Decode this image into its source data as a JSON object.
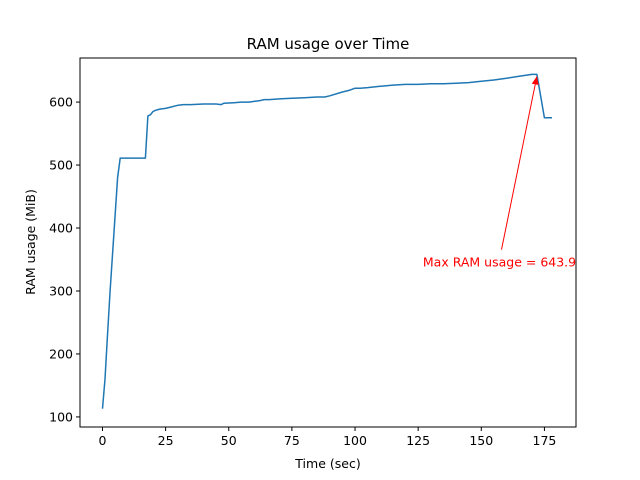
{
  "chart_data": {
    "type": "line",
    "title": "RAM usage over Time",
    "xlabel": "Time (sec)",
    "ylabel": "RAM usage (MiB)",
    "xlim": [
      -8.9,
      187.5
    ],
    "ylim": [
      84,
      670
    ],
    "xticks": [
      0,
      25,
      50,
      75,
      100,
      125,
      150,
      175
    ],
    "yticks": [
      100,
      200,
      300,
      400,
      500,
      600
    ],
    "grid": false,
    "series": [
      {
        "color": "#1f77b4",
        "x": [
          0,
          1,
          2,
          3,
          4,
          5,
          6,
          7,
          8,
          9,
          10,
          11,
          12,
          13,
          14,
          15,
          16,
          17,
          18,
          19,
          20,
          21,
          22,
          23,
          25,
          27,
          30,
          32,
          35,
          40,
          45,
          47,
          48,
          52,
          55,
          58,
          60,
          62,
          64,
          66,
          70,
          75,
          80,
          85,
          88,
          90,
          95,
          98,
          100,
          102,
          105,
          110,
          115,
          120,
          125,
          130,
          135,
          140,
          145,
          150,
          155,
          160,
          165,
          170,
          172,
          175,
          178
        ],
        "y": [
          113,
          160,
          230,
          300,
          360,
          420,
          480,
          511,
          511,
          511,
          511,
          511,
          511,
          511,
          511,
          511,
          511,
          511,
          578,
          580,
          585,
          587,
          588,
          589,
          590,
          592,
          595,
          596,
          596,
          597,
          597,
          596,
          598,
          599,
          600,
          600,
          601,
          602,
          604,
          604,
          605,
          606,
          607,
          608,
          608,
          610,
          616,
          619,
          622,
          622,
          623,
          625,
          627,
          628,
          628,
          629,
          629,
          630,
          631,
          633,
          635,
          638,
          641,
          643.9,
          643.9,
          575,
          575
        ]
      }
    ],
    "annotation": {
      "text": "Max RAM usage = 643.9",
      "color": "#ff0000",
      "xy": [
        172,
        643.9
      ],
      "xytext": [
        158,
        345
      ]
    }
  }
}
